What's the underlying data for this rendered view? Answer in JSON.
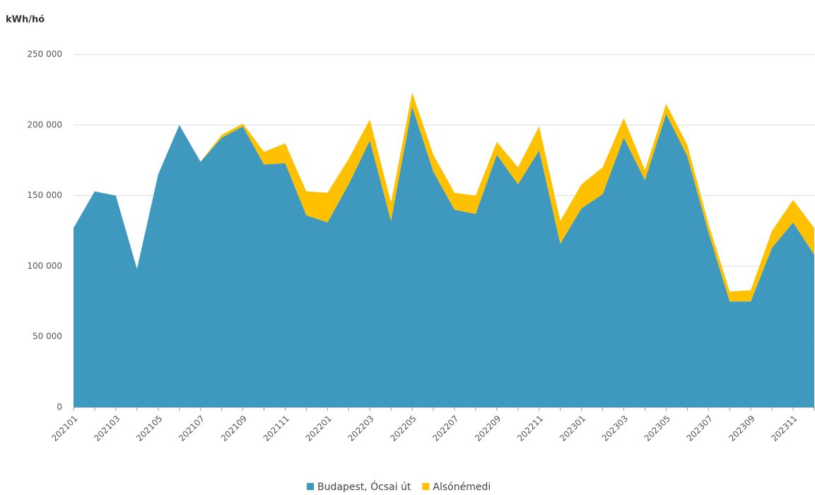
{
  "chart_data": {
    "type": "stacked_area",
    "y_axis_label": "kWh/hó",
    "categories": [
      "202101",
      null,
      "202103",
      null,
      "202105",
      null,
      "202107",
      null,
      "202109",
      null,
      "202111",
      null,
      "202201",
      null,
      "202203",
      null,
      "202205",
      null,
      "202207",
      null,
      "202209",
      null,
      "202211",
      null,
      "202301",
      null,
      "202303",
      null,
      "202305",
      null,
      "202307",
      null,
      "202309",
      null,
      "202311",
      null
    ],
    "series": [
      {
        "name": "Budapest, Ócsai út",
        "color": "#3f99bf",
        "values": [
          127000,
          153000,
          150000,
          98000,
          165000,
          200000,
          174000,
          191000,
          199000,
          172000,
          173000,
          136000,
          131000,
          158000,
          189000,
          132000,
          213000,
          167000,
          140000,
          137000,
          179000,
          158000,
          182000,
          116000,
          141000,
          151000,
          191000,
          161000,
          208000,
          178000,
          124000,
          75000,
          75000,
          113000,
          131000,
          108000
        ]
      },
      {
        "name": "Alsónémedi",
        "color": "#ffc000",
        "values": [
          0,
          0,
          0,
          0,
          0,
          0,
          0,
          2000,
          2000,
          9000,
          14000,
          17000,
          21000,
          18000,
          15000,
          13000,
          10000,
          12000,
          12000,
          13000,
          9000,
          12000,
          17000,
          16000,
          17000,
          19000,
          14000,
          7000,
          7000,
          8000,
          6000,
          7000,
          8000,
          12000,
          16000,
          19000
        ]
      }
    ],
    "ylim": [
      0,
      250000
    ],
    "yticks": [
      0,
      {
        "value": 50000,
        "label": "50 000"
      },
      {
        "value": 100000,
        "label": "100 000"
      },
      {
        "value": 150000,
        "label": "150 000"
      },
      {
        "value": 200000,
        "label": "200 000"
      },
      {
        "value": 250000,
        "label": "250 000"
      }
    ],
    "grid": true,
    "legend": "bottom"
  }
}
